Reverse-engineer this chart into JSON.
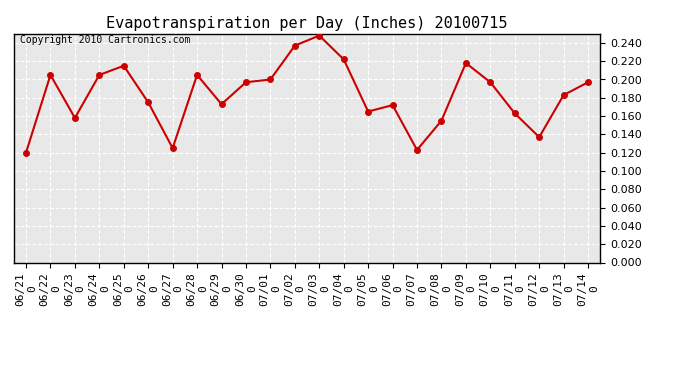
{
  "title": "Evapotranspiration per Day (Inches) 20100715",
  "copyright_text": "Copyright 2010 Cartronics.com",
  "dates": [
    "06/21",
    "06/22",
    "06/23",
    "06/24",
    "06/25",
    "06/26",
    "06/27",
    "06/28",
    "06/29",
    "06/30",
    "07/01",
    "07/02",
    "07/03",
    "07/04",
    "07/05",
    "07/06",
    "07/07",
    "07/08",
    "07/09",
    "07/10",
    "07/11",
    "07/12",
    "07/13",
    "07/14"
  ],
  "x_tick_labels": [
    "06/21\n0",
    "06/22\n0",
    "06/23\n0",
    "06/24\n0",
    "06/25\n0",
    "06/26\n0",
    "06/27\n0",
    "06/28\n0",
    "06/29\n0",
    "06/30\n0",
    "07/01\n0",
    "07/02\n0",
    "07/03\n0",
    "07/04\n0",
    "07/05\n0",
    "07/06\n0",
    "07/07\n0",
    "07/08\n0",
    "07/09\n0",
    "07/10\n0",
    "07/11\n0",
    "07/12\n0",
    "07/13\n0",
    "07/14\n0"
  ],
  "values": [
    0.12,
    0.205,
    0.158,
    0.205,
    0.215,
    0.175,
    0.125,
    0.205,
    0.173,
    0.197,
    0.2,
    0.237,
    0.248,
    0.222,
    0.165,
    0.172,
    0.123,
    0.155,
    0.218,
    0.197,
    0.163,
    0.137,
    0.183,
    0.197
  ],
  "line_color": "#cc0000",
  "marker_color": "#cc0000",
  "marker_style": "o",
  "marker_size": 4,
  "line_width": 1.5,
  "bg_color": "#ffffff",
  "plot_bg_color": "#e8e8e8",
  "grid_color": "#ffffff",
  "grid_style": "--",
  "ylim": [
    0.0,
    0.25
  ],
  "ytick_step": 0.02,
  "title_fontsize": 11,
  "copyright_fontsize": 7,
  "tick_fontsize": 8,
  "border_color": "#000000"
}
